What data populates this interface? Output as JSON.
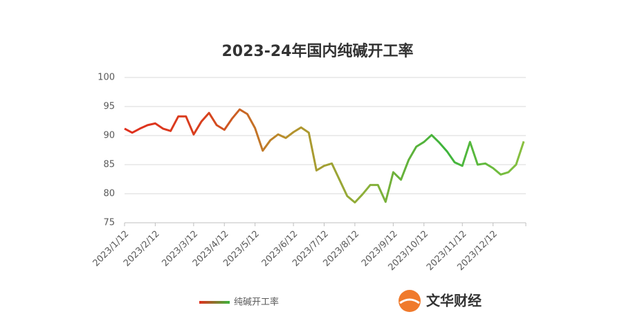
{
  "chart_data": {
    "type": "line",
    "title": "2023-24年国内纯碱开工率",
    "categories": [
      "2023/1/12",
      null,
      null,
      null,
      "2023/2/12",
      null,
      null,
      null,
      null,
      "2023/3/12",
      null,
      null,
      null,
      "2023/4/12",
      null,
      null,
      null,
      "2023/5/12",
      null,
      null,
      null,
      null,
      "2023/6/12",
      null,
      null,
      null,
      "2023/7/12",
      null,
      null,
      null,
      "2023/8/12",
      null,
      null,
      null,
      null,
      "2023/9/12",
      null,
      null,
      null,
      "2023/10/12",
      null,
      null,
      null,
      null,
      "2023/11/12",
      null,
      null,
      null,
      "2023/12/12",
      null,
      null,
      null,
      null
    ],
    "series": [
      {
        "name": "纯碱开工率",
        "colors": [
          "#e0301e",
          "#d8401e",
          "#b8902c",
          "#8cb03a",
          "#3cb43c",
          "#8cc040"
        ],
        "values": [
          91.2,
          90.5,
          91.2,
          91.8,
          92.1,
          91.2,
          90.8,
          93.3,
          93.3,
          90.2,
          92.4,
          93.9,
          91.8,
          91.0,
          92.9,
          94.5,
          93.7,
          91.3,
          87.4,
          89.2,
          90.2,
          89.6,
          90.6,
          91.4,
          90.5,
          84.0,
          84.8,
          85.2,
          82.4,
          79.6,
          78.5,
          79.9,
          81.5,
          81.5,
          78.6,
          83.7,
          82.4,
          85.8,
          88.1,
          88.9,
          90.1,
          88.8,
          87.3,
          85.4,
          84.8,
          88.9,
          85.0,
          85.2,
          84.4,
          83.3,
          83.7,
          85.0,
          89.0
        ]
      }
    ],
    "ylim": [
      75,
      100
    ],
    "yticks": [
      75,
      80,
      85,
      90,
      95,
      100
    ],
    "grid": true,
    "legend": "bottom",
    "logo": "文华财经"
  }
}
